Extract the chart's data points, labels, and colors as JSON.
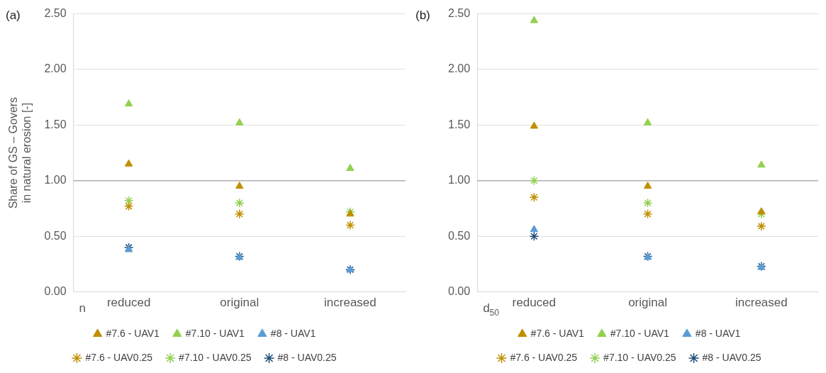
{
  "chart_data": [
    {
      "type": "scatter",
      "title": "(a)",
      "xlabel": "n",
      "ylabel": "Share of GS – Govers in natural erosion [-]",
      "categories": [
        "reduced",
        "original",
        "increased"
      ],
      "series": [
        {
          "name": "#7.6 - UAV1",
          "color": "#bf8f00",
          "marker": "triangle",
          "values": [
            1.15,
            0.95,
            0.7
          ]
        },
        {
          "name": "#7.10 - UAV1",
          "color": "#92d050",
          "marker": "triangle",
          "values": [
            1.69,
            1.52,
            1.11
          ]
        },
        {
          "name": "#8 - UAV1",
          "color": "#5b9bd5",
          "marker": "triangle",
          "values": [
            0.38,
            0.31,
            0.2
          ]
        },
        {
          "name": "#7.6 - UAV0.25",
          "color": "#bf8f00",
          "marker": "cross",
          "values": [
            0.77,
            0.7,
            0.6
          ]
        },
        {
          "name": "#7.10 - UAV0.25",
          "color": "#92d050",
          "marker": "cross",
          "values": [
            0.82,
            0.8,
            0.72
          ]
        },
        {
          "name": "#8 - UAV0.25",
          "color": "#1f4e79",
          "marker": "cross",
          "values": [
            0.4,
            0.32,
            0.2
          ]
        }
      ],
      "ylim": [
        0,
        2.5
      ],
      "yticks": [
        {
          "value": 0,
          "label": "0.00"
        },
        {
          "value": 0.5,
          "label": "0.50"
        },
        {
          "value": 1,
          "label": "1.00"
        },
        {
          "value": 1.5,
          "label": "1.50"
        },
        {
          "value": 2,
          "label": "2.00"
        },
        {
          "value": 2.5,
          "label": "2.50"
        }
      ],
      "ref_lines": [
        {
          "axis": "y",
          "value": 1,
          "color": "#a6a6a6"
        }
      ],
      "grid": "y",
      "legend": "bottom"
    },
    {
      "type": "scatter",
      "title": "(b)",
      "xlabel": "d$_{50}$",
      "categories": [
        "reduced",
        "original",
        "increased"
      ],
      "series": [
        {
          "name": "#7.6 - UAV1",
          "color": "#bf8f00",
          "marker": "triangle",
          "values": [
            1.49,
            0.95,
            0.72
          ]
        },
        {
          "name": "#7.10 - UAV1",
          "color": "#92d050",
          "marker": "triangle",
          "values": [
            2.44,
            1.52,
            1.14
          ]
        },
        {
          "name": "#8 - UAV1",
          "color": "#5b9bd5",
          "marker": "triangle",
          "values": [
            0.56,
            0.31,
            0.22
          ]
        },
        {
          "name": "#7.6 - UAV0.25",
          "color": "#bf8f00",
          "marker": "cross",
          "values": [
            0.85,
            0.7,
            0.59
          ]
        },
        {
          "name": "#7.10 - UAV0.25",
          "color": "#92d050",
          "marker": "cross",
          "values": [
            1.0,
            0.8,
            0.7
          ]
        },
        {
          "name": "#8 - UAV0.25",
          "color": "#1f4e79",
          "marker": "cross",
          "values": [
            0.5,
            0.32,
            0.23
          ]
        }
      ],
      "ylim": [
        0,
        2.5
      ],
      "yticks": [
        {
          "value": 0,
          "label": "0.00"
        },
        {
          "value": 0.5,
          "label": "0.50"
        },
        {
          "value": 1,
          "label": "1.00"
        },
        {
          "value": 1.5,
          "label": "1.50"
        },
        {
          "value": 2,
          "label": "2.00"
        },
        {
          "value": 2.5,
          "label": "2.50"
        }
      ],
      "ref_lines": [
        {
          "axis": "y",
          "value": 1,
          "color": "#a6a6a6"
        }
      ],
      "grid": "y",
      "legend": "bottom"
    }
  ]
}
